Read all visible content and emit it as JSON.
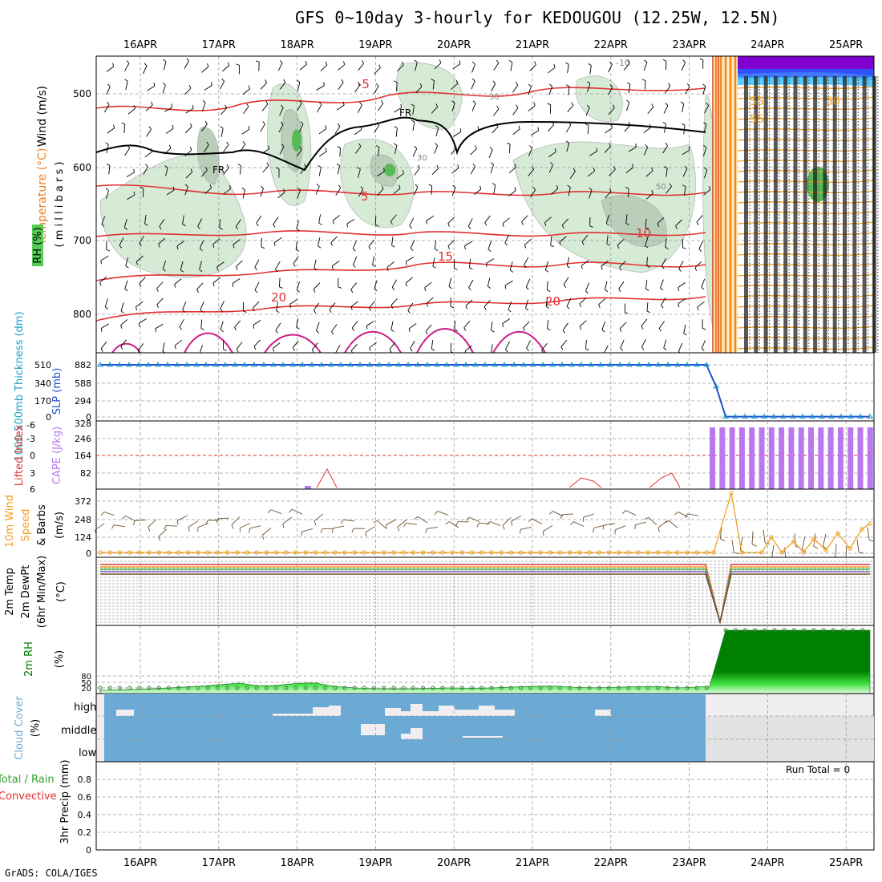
{
  "title": "GFS 0~10day 3-hourly for KEDOUGOU (12.25W, 12.5N)",
  "footer": "GrADS: COLA/IGES",
  "dates": [
    "16APR",
    "17APR",
    "18APR",
    "19APR",
    "20APR",
    "21APR",
    "22APR",
    "23APR",
    "24APR",
    "25APR"
  ],
  "colors": {
    "grid": "#9a9a9a",
    "temperature": "#e03030",
    "freezing": "#000000",
    "rh_shade": "#bfe0bf",
    "thickness": "#1aa0c8",
    "slp": "#2050d0",
    "lifted": "#e03030",
    "cape": "#bb77ee",
    "wind10": "#f0a020",
    "barbs": "#6e5030",
    "rh2m": "#008000",
    "cloud": "#6aaad4",
    "cloud_bg": "#f0eef0"
  },
  "panels": {
    "upper": {
      "ylabel_wind": "Wind (m/s)",
      "ylabel_temp": "Temperature (°C)",
      "ylabel_rh": "RH (%)",
      "ylabel_unit": "( m i l l i b a r s )",
      "pressure_ticks": [
        "500",
        "600",
        "700",
        "800"
      ],
      "contour_labels": [
        "-5",
        "5",
        "10",
        "15",
        "20",
        "20",
        "FR",
        "FR",
        "30",
        "30",
        "50",
        "-10",
        "55",
        "55",
        "50"
      ]
    },
    "slp": {
      "ylabel_thick": "1000-500mb Thickness (dm)",
      "ylabel_slp": "SLP (mb)",
      "left_ticks": [
        "510",
        "340",
        "170",
        "0"
      ],
      "right_ticks": [
        "882",
        "588",
        "294",
        "0"
      ]
    },
    "cape": {
      "ylabel_li": "Lifted Index",
      "ylabel_cape": "CAPE (J/kg)",
      "left_ticks": [
        "-6",
        "-3",
        "0",
        "3",
        "6"
      ],
      "right_ticks": [
        "328",
        "246",
        "164",
        "82"
      ]
    },
    "wind": {
      "ylabel_1": "10m Wind",
      "ylabel_2": "Speed",
      "ylabel_3": "& Barbs",
      "ylabel_unit": "(m/s)",
      "ticks": [
        "372",
        "248",
        "124",
        "0"
      ]
    },
    "temp": {
      "ylabel_1": "2m Temp",
      "ylabel_2": "2m DewPt",
      "ylabel_3": "(6hr Min/Max)",
      "ylabel_unit": "(°C)"
    },
    "rh": {
      "ylabel": "2m RH",
      "ylabel_unit": "(%)",
      "ticks": [
        "80",
        "50",
        "20"
      ]
    },
    "cloud": {
      "ylabel": "Cloud Cover",
      "ylabel_unit": "(%)",
      "levels": [
        "high",
        "middle",
        "low"
      ]
    },
    "precip": {
      "ylabel_total": "Total / Rain",
      "ylabel_conv": "Convective",
      "ylabel_unit": "3hr Precip (mm)",
      "ticks": [
        "0.8",
        "0.6",
        "0.4",
        "0.2",
        "0"
      ],
      "run_total": "Run Total = 0"
    }
  },
  "chart_data": {
    "type": "line",
    "x": [
      "16APR",
      "17APR",
      "18APR",
      "19APR",
      "20APR",
      "21APR",
      "22APR",
      "23APR",
      "24APR",
      "25APR"
    ],
    "series": [
      {
        "name": "SLP (mb)",
        "values": [
          882,
          882,
          882,
          882,
          882,
          882,
          882,
          882,
          5,
          5
        ]
      },
      {
        "name": "CAPE (J/kg)",
        "values": [
          0,
          0,
          0,
          0,
          0,
          0,
          0,
          0,
          328,
          328
        ]
      },
      {
        "name": "2m RH",
        "values": [
          20,
          22,
          28,
          20,
          20,
          22,
          22,
          22,
          98,
          98
        ]
      },
      {
        "name": "3hr Precip (mm)",
        "values": [
          0,
          0,
          0,
          0,
          0,
          0,
          0,
          0,
          0,
          0
        ]
      }
    ],
    "ylim_precip": [
      0,
      0.9
    ]
  }
}
